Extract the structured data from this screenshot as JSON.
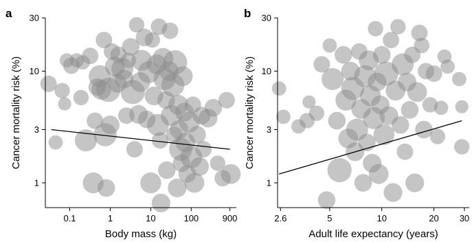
{
  "colors": {
    "bubble_fill": "#8c8c8c",
    "bubble_opacity": 0.5,
    "axis": "#000000",
    "fit_line": "#000000"
  },
  "chart_data": [
    {
      "panel": "a",
      "type": "scatter",
      "xlabel": "Body mass (kg)",
      "ylabel": "Cancer mortality risk (%)",
      "xscale": "log",
      "yscale": "log",
      "xlim": [
        0.025,
        1300
      ],
      "ylim": [
        0.6,
        30
      ],
      "xticks": [
        0.1,
        1,
        10,
        100,
        900
      ],
      "xtick_labels": [
        "0.1",
        "1",
        "10",
        "100",
        "900"
      ],
      "yticks": [
        1,
        3,
        10,
        30
      ],
      "ytick_labels": [
        "1",
        "3",
        "10",
        "30"
      ],
      "grid": false,
      "legend": "none",
      "fit_line": {
        "x": [
          0.035,
          900
        ],
        "y": [
          3.0,
          2.0
        ]
      },
      "points": [
        {
          "x": 0.03,
          "y": 7.7,
          "s": 1.5
        },
        {
          "x": 0.045,
          "y": 2.3,
          "s": 1.3
        },
        {
          "x": 0.065,
          "y": 6.7,
          "s": 1.4
        },
        {
          "x": 0.075,
          "y": 5.1,
          "s": 1.2
        },
        {
          "x": 0.085,
          "y": 12.5,
          "s": 1.3
        },
        {
          "x": 0.11,
          "y": 11.2,
          "s": 1.5
        },
        {
          "x": 0.15,
          "y": 12.5,
          "s": 1.3
        },
        {
          "x": 0.19,
          "y": 5.8,
          "s": 1.4
        },
        {
          "x": 0.21,
          "y": 12.0,
          "s": 1.3
        },
        {
          "x": 0.25,
          "y": 2.4,
          "s": 2.0
        },
        {
          "x": 0.32,
          "y": 13.7,
          "s": 1.5
        },
        {
          "x": 0.38,
          "y": 1.0,
          "s": 1.9
        },
        {
          "x": 0.42,
          "y": 3.6,
          "s": 1.5
        },
        {
          "x": 0.48,
          "y": 7.2,
          "s": 1.6
        },
        {
          "x": 0.55,
          "y": 9.0,
          "s": 2.0
        },
        {
          "x": 0.6,
          "y": 6.8,
          "s": 1.8
        },
        {
          "x": 0.7,
          "y": 19.0,
          "s": 1.5
        },
        {
          "x": 0.75,
          "y": 2.7,
          "s": 2.1
        },
        {
          "x": 0.8,
          "y": 0.9,
          "s": 1.6
        },
        {
          "x": 0.9,
          "y": 6.8,
          "s": 2.2
        },
        {
          "x": 1.0,
          "y": 3.3,
          "s": 1.7
        },
        {
          "x": 1.1,
          "y": 15.0,
          "s": 1.5
        },
        {
          "x": 1.3,
          "y": 11.0,
          "s": 1.8
        },
        {
          "x": 1.5,
          "y": 7.8,
          "s": 1.7
        },
        {
          "x": 1.6,
          "y": 14.0,
          "s": 1.5
        },
        {
          "x": 2.0,
          "y": 10.5,
          "s": 2.0
        },
        {
          "x": 2.2,
          "y": 8.5,
          "s": 1.7
        },
        {
          "x": 2.5,
          "y": 4.0,
          "s": 1.5
        },
        {
          "x": 2.8,
          "y": 12.5,
          "s": 1.4
        },
        {
          "x": 3.2,
          "y": 16.5,
          "s": 1.6
        },
        {
          "x": 3.6,
          "y": 6.5,
          "s": 2.2
        },
        {
          "x": 4.0,
          "y": 2.0,
          "s": 1.5
        },
        {
          "x": 4.5,
          "y": 26.0,
          "s": 1.4
        },
        {
          "x": 5.0,
          "y": 4.1,
          "s": 1.7
        },
        {
          "x": 5.5,
          "y": 8.0,
          "s": 1.8
        },
        {
          "x": 6.0,
          "y": 12.5,
          "s": 1.9
        },
        {
          "x": 7.0,
          "y": 20.0,
          "s": 1.6
        },
        {
          "x": 8.0,
          "y": 3.7,
          "s": 1.6
        },
        {
          "x": 9.0,
          "y": 9.8,
          "s": 2.0
        },
        {
          "x": 10.0,
          "y": 1.0,
          "s": 1.9
        },
        {
          "x": 11.0,
          "y": 19.0,
          "s": 1.4
        },
        {
          "x": 12.0,
          "y": 6.0,
          "s": 1.7
        },
        {
          "x": 14.0,
          "y": 11.5,
          "s": 1.8
        },
        {
          "x": 15.0,
          "y": 3.3,
          "s": 2.0
        },
        {
          "x": 16.0,
          "y": 25.0,
          "s": 1.5
        },
        {
          "x": 17.0,
          "y": 2.4,
          "s": 1.5
        },
        {
          "x": 18.0,
          "y": 0.66,
          "s": 1.7
        },
        {
          "x": 20.0,
          "y": 13.0,
          "s": 1.9
        },
        {
          "x": 22.0,
          "y": 8.5,
          "s": 2.0
        },
        {
          "x": 24.0,
          "y": 5.5,
          "s": 1.6
        },
        {
          "x": 25.0,
          "y": 1.3,
          "s": 1.6
        },
        {
          "x": 28.0,
          "y": 10.0,
          "s": 1.8
        },
        {
          "x": 30.0,
          "y": 23.0,
          "s": 1.5
        },
        {
          "x": 32.0,
          "y": 4.0,
          "s": 1.9
        },
        {
          "x": 35.0,
          "y": 7.5,
          "s": 2.1
        },
        {
          "x": 38.0,
          "y": 2.7,
          "s": 1.5
        },
        {
          "x": 40.0,
          "y": 12.0,
          "s": 2.2
        },
        {
          "x": 45.0,
          "y": 0.9,
          "s": 1.7
        },
        {
          "x": 48.0,
          "y": 5.0,
          "s": 1.8
        },
        {
          "x": 50.0,
          "y": 3.0,
          "s": 1.7
        },
        {
          "x": 55.0,
          "y": 2.0,
          "s": 2.1
        },
        {
          "x": 58.0,
          "y": 1.5,
          "s": 1.6
        },
        {
          "x": 62.0,
          "y": 9.0,
          "s": 1.8
        },
        {
          "x": 68.0,
          "y": 4.3,
          "s": 1.7
        },
        {
          "x": 72.0,
          "y": 2.3,
          "s": 1.8
        },
        {
          "x": 80.0,
          "y": 1.2,
          "s": 1.6
        },
        {
          "x": 90.0,
          "y": 3.5,
          "s": 1.9
        },
        {
          "x": 100.0,
          "y": 1.7,
          "s": 2.0
        },
        {
          "x": 110.0,
          "y": 5.0,
          "s": 1.5
        },
        {
          "x": 120.0,
          "y": 1.0,
          "s": 1.8
        },
        {
          "x": 140.0,
          "y": 2.7,
          "s": 1.6
        },
        {
          "x": 160.0,
          "y": 1.4,
          "s": 1.7
        },
        {
          "x": 180.0,
          "y": 4.0,
          "s": 1.6
        },
        {
          "x": 200.0,
          "y": 2.0,
          "s": 1.5
        },
        {
          "x": 260.0,
          "y": 3.8,
          "s": 1.7
        },
        {
          "x": 350.0,
          "y": 4.7,
          "s": 1.6
        },
        {
          "x": 450.0,
          "y": 1.5,
          "s": 1.4
        },
        {
          "x": 600.0,
          "y": 1.1,
          "s": 1.5
        },
        {
          "x": 750.0,
          "y": 5.5,
          "s": 1.5
        },
        {
          "x": 950.0,
          "y": 1.2,
          "s": 1.8
        }
      ]
    },
    {
      "panel": "b",
      "type": "scatter",
      "xlabel": "Adult life expectancy (years)",
      "ylabel": "Cancer mortality risk (%)",
      "xscale": "log",
      "yscale": "log",
      "xlim": [
        2.5,
        32
      ],
      "ylim": [
        0.6,
        30
      ],
      "xticks": [
        2.6,
        5,
        10,
        20,
        30
      ],
      "xtick_labels": [
        "2.6",
        "5",
        "10",
        "20",
        "30"
      ],
      "yticks": [
        1,
        3,
        10,
        30
      ],
      "ytick_labels": [
        "1",
        "3",
        "10",
        "30"
      ],
      "grid": false,
      "legend": "none",
      "fit_line": {
        "x": [
          2.55,
          29
        ],
        "y": [
          1.2,
          3.6
        ]
      },
      "points": [
        {
          "x": 2.55,
          "y": 7.0,
          "s": 1.3
        },
        {
          "x": 2.7,
          "y": 3.9,
          "s": 1.3
        },
        {
          "x": 3.3,
          "y": 3.2,
          "s": 1.3
        },
        {
          "x": 3.7,
          "y": 3.6,
          "s": 1.4
        },
        {
          "x": 3.8,
          "y": 5.3,
          "s": 1.2
        },
        {
          "x": 4.2,
          "y": 4.2,
          "s": 1.4
        },
        {
          "x": 4.5,
          "y": 11.5,
          "s": 1.5
        },
        {
          "x": 4.8,
          "y": 0.7,
          "s": 1.6
        },
        {
          "x": 5.0,
          "y": 17.0,
          "s": 1.3
        },
        {
          "x": 5.2,
          "y": 8.5,
          "s": 2.0
        },
        {
          "x": 5.5,
          "y": 3.6,
          "s": 1.6
        },
        {
          "x": 5.7,
          "y": 1.3,
          "s": 2.2
        },
        {
          "x": 6.0,
          "y": 14.0,
          "s": 1.6
        },
        {
          "x": 6.2,
          "y": 5.5,
          "s": 1.9
        },
        {
          "x": 6.4,
          "y": 2.5,
          "s": 1.8
        },
        {
          "x": 6.6,
          "y": 10.0,
          "s": 1.7
        },
        {
          "x": 6.8,
          "y": 7.0,
          "s": 2.1
        },
        {
          "x": 7.0,
          "y": 1.9,
          "s": 1.7
        },
        {
          "x": 7.2,
          "y": 3.0,
          "s": 2.0
        },
        {
          "x": 7.4,
          "y": 15.0,
          "s": 1.5
        },
        {
          "x": 7.6,
          "y": 4.6,
          "s": 1.8
        },
        {
          "x": 7.8,
          "y": 1.0,
          "s": 1.6
        },
        {
          "x": 8.0,
          "y": 9.0,
          "s": 2.0
        },
        {
          "x": 8.2,
          "y": 2.3,
          "s": 1.6
        },
        {
          "x": 8.4,
          "y": 12.5,
          "s": 1.8
        },
        {
          "x": 8.6,
          "y": 6.0,
          "s": 1.9
        },
        {
          "x": 8.8,
          "y": 1.5,
          "s": 1.7
        },
        {
          "x": 9.0,
          "y": 3.8,
          "s": 2.0
        },
        {
          "x": 9.2,
          "y": 24.0,
          "s": 1.4
        },
        {
          "x": 9.4,
          "y": 8.0,
          "s": 1.7
        },
        {
          "x": 9.6,
          "y": 1.2,
          "s": 1.8
        },
        {
          "x": 9.8,
          "y": 5.0,
          "s": 1.7
        },
        {
          "x": 10.0,
          "y": 14.0,
          "s": 1.6
        },
        {
          "x": 10.3,
          "y": 2.7,
          "s": 1.9
        },
        {
          "x": 10.6,
          "y": 9.5,
          "s": 2.2
        },
        {
          "x": 11.0,
          "y": 4.0,
          "s": 1.7
        },
        {
          "x": 11.3,
          "y": 19.0,
          "s": 1.5
        },
        {
          "x": 11.6,
          "y": 0.82,
          "s": 1.7
        },
        {
          "x": 12.0,
          "y": 6.7,
          "s": 1.8
        },
        {
          "x": 12.4,
          "y": 25.0,
          "s": 1.4
        },
        {
          "x": 12.8,
          "y": 3.3,
          "s": 1.6
        },
        {
          "x": 13.2,
          "y": 11.5,
          "s": 2.0
        },
        {
          "x": 13.6,
          "y": 1.9,
          "s": 1.5
        },
        {
          "x": 14.0,
          "y": 8.0,
          "s": 1.7
        },
        {
          "x": 14.5,
          "y": 4.5,
          "s": 1.6
        },
        {
          "x": 15.0,
          "y": 14.0,
          "s": 1.5
        },
        {
          "x": 15.5,
          "y": 1.0,
          "s": 1.7
        },
        {
          "x": 16.0,
          "y": 6.5,
          "s": 1.8
        },
        {
          "x": 16.5,
          "y": 22.0,
          "s": 1.5
        },
        {
          "x": 17.0,
          "y": 17.0,
          "s": 1.4
        },
        {
          "x": 17.5,
          "y": 3.0,
          "s": 1.6
        },
        {
          "x": 18.0,
          "y": 10.0,
          "s": 1.5
        },
        {
          "x": 19.0,
          "y": 5.0,
          "s": 1.4
        },
        {
          "x": 20.0,
          "y": 9.5,
          "s": 1.5
        },
        {
          "x": 21.0,
          "y": 2.6,
          "s": 1.4
        },
        {
          "x": 22.0,
          "y": 4.7,
          "s": 1.3
        },
        {
          "x": 23.0,
          "y": 13.5,
          "s": 1.3
        },
        {
          "x": 24.0,
          "y": 11.0,
          "s": 1.3
        },
        {
          "x": 28.0,
          "y": 8.5,
          "s": 1.3
        },
        {
          "x": 29.0,
          "y": 4.8,
          "s": 1.2
        },
        {
          "x": 29.0,
          "y": 2.1,
          "s": 1.4
        }
      ]
    }
  ]
}
